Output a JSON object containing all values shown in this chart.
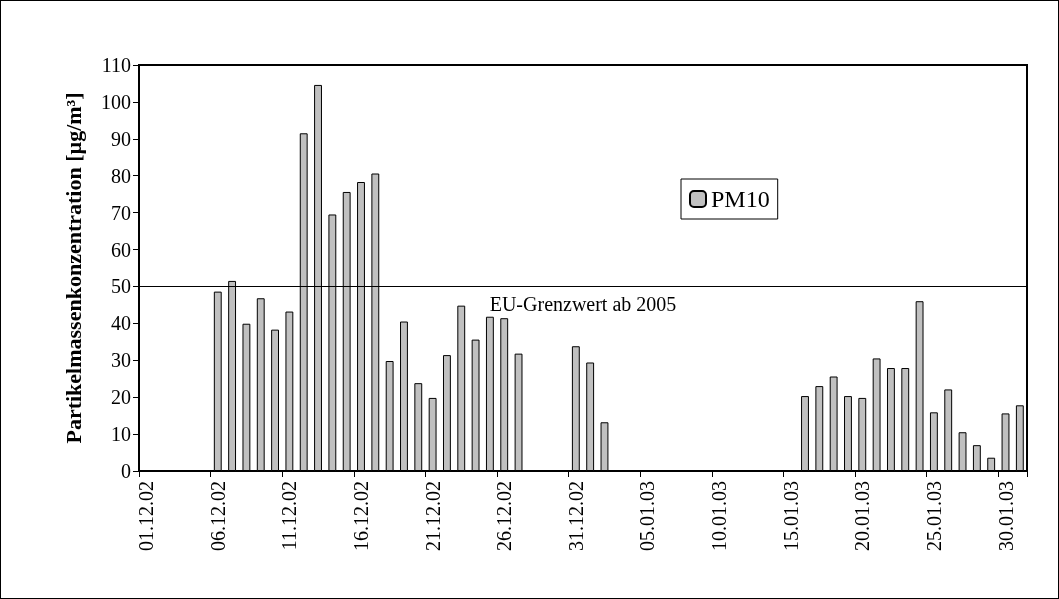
{
  "chart_data": {
    "type": "bar",
    "ylabel": "Partikelmassenkonzentration [µg/m³]",
    "categories": [
      "01.12.02",
      null,
      null,
      null,
      null,
      "06.12.02",
      null,
      null,
      null,
      null,
      "11.12.02",
      null,
      null,
      null,
      null,
      "16.12.02",
      null,
      null,
      null,
      null,
      "21.12.02",
      null,
      null,
      null,
      null,
      "26.12.02",
      null,
      null,
      null,
      null,
      "31.12.02",
      null,
      null,
      null,
      null,
      "05.01.03",
      null,
      null,
      null,
      null,
      "10.01.03",
      null,
      null,
      null,
      null,
      "15.01.03",
      null,
      null,
      null,
      null,
      "20.01.03",
      null,
      null,
      null,
      null,
      "25.01.03",
      null,
      null,
      null,
      null,
      "30.01.03",
      null
    ],
    "series": [
      {
        "name": "PM10",
        "color": "#c0c0c0",
        "values": [
          null,
          null,
          null,
          null,
          null,
          48.6,
          51.5,
          39.9,
          46.8,
          38.3,
          43.2,
          91.5,
          104.6,
          69.5,
          75.6,
          78.3,
          80.6,
          29.8,
          40.5,
          23.8,
          19.8,
          31.4,
          44.8,
          35.6,
          41.8,
          41.4,
          31.8,
          null,
          null,
          null,
          33.8,
          29.4,
          13.2,
          null,
          null,
          null,
          null,
          null,
          null,
          null,
          null,
          null,
          null,
          null,
          null,
          null,
          20.3,
          23.0,
          25.6,
          20.3,
          19.8,
          30.5,
          27.9,
          27.9,
          46.0,
          15.9,
          22.1,
          10.5,
          7.0,
          3.6,
          15.6,
          17.8
        ]
      }
    ],
    "ylim": [
      0,
      110
    ],
    "yticks": [
      0,
      10,
      20,
      30,
      40,
      50,
      60,
      70,
      80,
      90,
      100,
      110
    ],
    "ref_lines": [
      {
        "axis": "y",
        "value": 50,
        "label": "EU-Grenzwert ab 2005",
        "color": "#000000"
      }
    ],
    "grid": false,
    "legend": "top right"
  }
}
